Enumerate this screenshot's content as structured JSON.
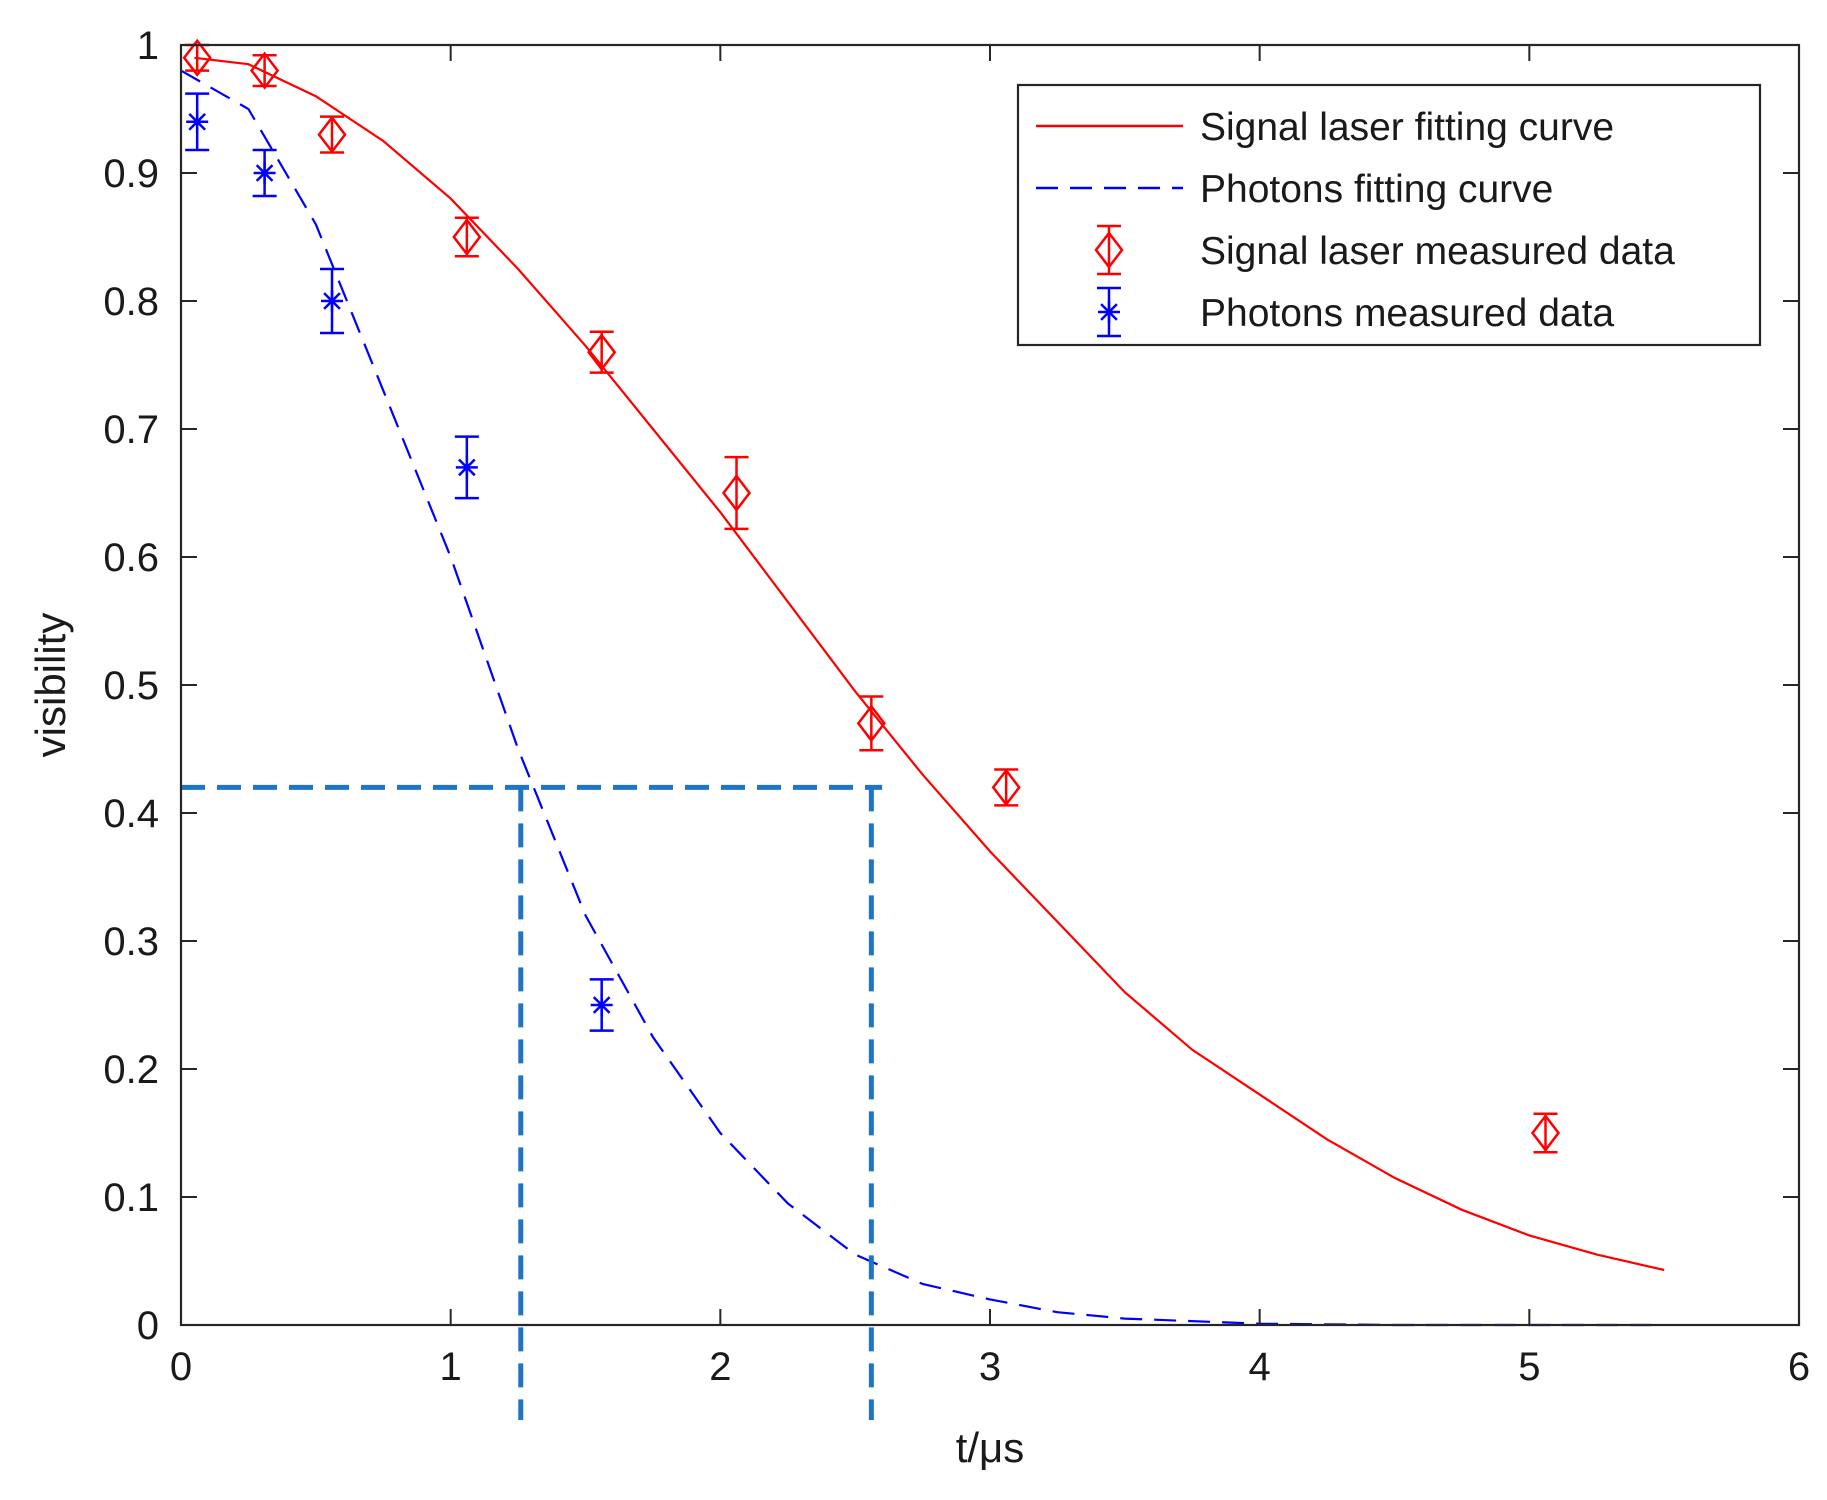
{
  "chart_data": {
    "type": "scatter",
    "xlabel": "t/μs",
    "ylabel": "visibility",
    "xlim": [
      0,
      6
    ],
    "ylim": [
      0,
      1
    ],
    "xticks": [
      0,
      1,
      2,
      3,
      4,
      5,
      6
    ],
    "yticks": [
      0,
      0.1,
      0.2,
      0.3,
      0.4,
      0.5,
      0.6,
      0.7,
      0.8,
      0.9,
      1
    ],
    "xtick_labels": [
      "0",
      "1",
      "2",
      "3",
      "4",
      "5",
      "6"
    ],
    "ytick_labels": [
      "0",
      "0.1",
      "0.2",
      "0.3",
      "0.4",
      "0.5",
      "0.6",
      "0.7",
      "0.8",
      "0.9",
      "1"
    ],
    "grid": false,
    "legend_position": "top-right",
    "series": [
      {
        "name": "Signal laser fitting curve",
        "kind": "line",
        "style": "solid",
        "color": "#ff0000",
        "x": [
          0.05,
          0.25,
          0.5,
          0.75,
          1.0,
          1.25,
          1.5,
          1.75,
          2.0,
          2.25,
          2.5,
          2.75,
          3.0,
          3.25,
          3.5,
          3.75,
          4.0,
          4.25,
          4.5,
          4.75,
          5.0,
          5.25,
          5.5
        ],
        "y": [
          0.99,
          0.985,
          0.96,
          0.925,
          0.88,
          0.825,
          0.765,
          0.7,
          0.635,
          0.565,
          0.495,
          0.43,
          0.37,
          0.315,
          0.26,
          0.215,
          0.18,
          0.145,
          0.115,
          0.09,
          0.07,
          0.055,
          0.043
        ]
      },
      {
        "name": "Photons fitting curve",
        "kind": "line",
        "style": "dashed",
        "color": "#0000ff",
        "x": [
          0.0,
          0.25,
          0.5,
          0.75,
          1.0,
          1.25,
          1.5,
          1.75,
          2.0,
          2.25,
          2.5,
          2.75,
          3.0,
          3.25,
          3.5,
          4.0,
          4.5,
          5.0,
          5.5
        ],
        "y": [
          0.98,
          0.95,
          0.86,
          0.73,
          0.6,
          0.45,
          0.32,
          0.225,
          0.15,
          0.095,
          0.055,
          0.032,
          0.02,
          0.01,
          0.005,
          0.001,
          0.0,
          0.0,
          0.0
        ]
      },
      {
        "name": "Signal laser measured data",
        "kind": "errorbar",
        "marker": "diamond",
        "color": "#ff0000",
        "x": [
          0.06,
          0.31,
          0.56,
          1.06,
          1.56,
          2.06,
          2.56,
          3.06,
          5.06
        ],
        "y": [
          0.99,
          0.98,
          0.93,
          0.85,
          0.76,
          0.65,
          0.47,
          0.42,
          0.15
        ],
        "err": [
          0.01,
          0.012,
          0.014,
          0.015,
          0.016,
          0.028,
          0.021,
          0.014,
          0.015
        ]
      },
      {
        "name": "Photons measured data",
        "kind": "errorbar",
        "marker": "asterisk",
        "color": "#0000ff",
        "x": [
          0.06,
          0.31,
          0.56,
          1.06,
          1.56
        ],
        "y": [
          0.94,
          0.9,
          0.8,
          0.67,
          0.25
        ],
        "err": [
          0.022,
          0.018,
          0.025,
          0.024,
          0.02
        ]
      }
    ],
    "annotations": {
      "color": "#1f74c4",
      "guide_level_y": 0.42,
      "guide_level_x_range": [
        0,
        2.6
      ],
      "vertical_guides_x": [
        1.26,
        2.56
      ]
    }
  }
}
